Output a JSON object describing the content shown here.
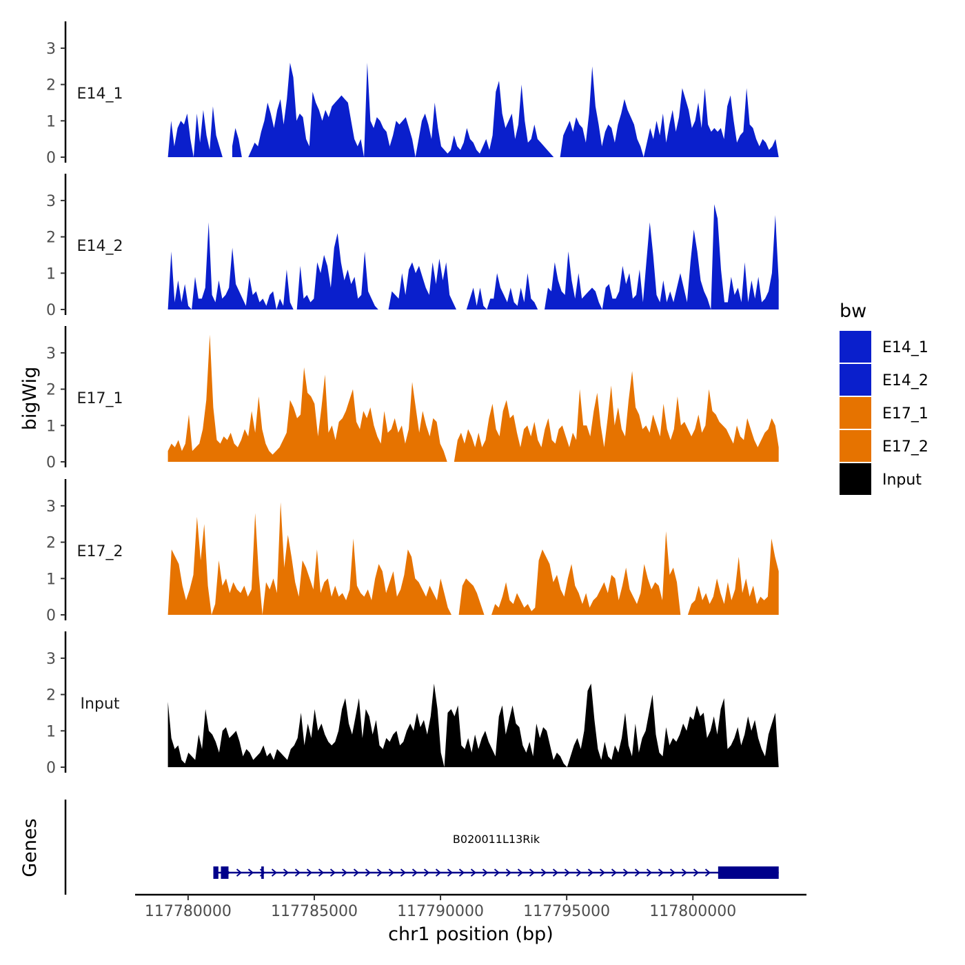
{
  "chart_data": {
    "type": "area",
    "title": "",
    "ylabel": "bigWig",
    "genes_label": "Genes",
    "xlabel": "chr1 position (bp)",
    "x_ticks": [
      117780000,
      117785000,
      117790000,
      117795000,
      117800000
    ],
    "x_tick_labels": [
      "117780000",
      "117785000",
      "117790000",
      "117795000",
      "117800000"
    ],
    "xlim": [
      117777900,
      117804500
    ],
    "data_x_range": [
      117779200,
      117803400
    ],
    "ylim": [
      0,
      3.7
    ],
    "y_ticks": [
      0,
      1,
      2,
      3
    ],
    "y_tick_labels": [
      "0",
      "1",
      "2",
      "3"
    ],
    "legend": {
      "title": "bw",
      "position": "right",
      "entries": [
        {
          "label": "E14_1",
          "color": "#0a1fcc"
        },
        {
          "label": "E14_2",
          "color": "#0a1fcc"
        },
        {
          "label": "E17_1",
          "color": "#e67300"
        },
        {
          "label": "E17_2",
          "color": "#e67300"
        },
        {
          "label": "Input",
          "color": "#000000"
        }
      ]
    },
    "series": [
      {
        "name": "E14_1",
        "color": "#0a1fcc",
        "values": [
          0,
          1.0,
          0.3,
          0.8,
          1.0,
          0.9,
          1.2,
          0.5,
          0,
          1.2,
          0.4,
          1.3,
          0.6,
          0.2,
          1.4,
          0.6,
          0.3,
          0,
          null,
          null,
          0.3,
          0.8,
          0.5,
          0,
          null,
          0,
          0.2,
          0.4,
          0.3,
          0.7,
          1.0,
          1.5,
          1.2,
          0.8,
          1.3,
          1.6,
          0.9,
          1.6,
          2.6,
          2.2,
          1.0,
          1.2,
          1.1,
          0.5,
          0.3,
          1.8,
          1.5,
          1.3,
          1.0,
          1.3,
          1.1,
          1.4,
          1.5,
          1.6,
          1.7,
          1.6,
          1.5,
          1.0,
          0.5,
          0.3,
          0.5,
          0,
          2.6,
          1.0,
          0.8,
          1.1,
          1.0,
          0.8,
          0.7,
          0.3,
          0.6,
          1.0,
          0.9,
          1.0,
          1.1,
          0.8,
          0.5,
          0,
          0.5,
          1.0,
          1.2,
          0.9,
          0.5,
          1.5,
          0.8,
          0.3,
          0.2,
          0.1,
          0.2,
          0.6,
          0.3,
          0.2,
          0.4,
          0.8,
          0.5,
          0.4,
          0.2,
          0.1,
          0.3,
          0.5,
          0.2,
          0.6,
          1.8,
          2.1,
          1.2,
          0.8,
          1.0,
          1.2,
          0.5,
          0.9,
          2.0,
          1.0,
          0.4,
          0.5,
          0.9,
          0.5,
          0.4,
          0.3,
          0.2,
          0.1,
          0,
          null,
          0,
          0.6,
          0.8,
          1.0,
          0.7,
          1.1,
          0.9,
          0.8,
          0.4,
          1.2,
          2.5,
          1.4,
          0.9,
          0.3,
          0.7,
          0.9,
          0.8,
          0.4,
          0.9,
          1.2,
          1.6,
          1.3,
          1.1,
          0.9,
          0.5,
          0.3,
          0,
          0.4,
          0.8,
          0.5,
          1.0,
          0.6,
          1.2,
          0.4,
          0.9,
          1.3,
          0.7,
          1.1,
          1.9,
          1.6,
          1.3,
          0.8,
          1.0,
          1.5,
          0.8,
          1.9,
          0.9,
          0.7,
          0.8,
          0.7,
          0.8,
          0.5,
          1.4,
          1.7,
          1.0,
          0.4,
          0.6,
          0.7,
          1.9,
          0.9,
          0.8,
          0.5,
          0.3,
          0.5,
          0.4,
          0.2,
          0.3,
          0.5,
          0
        ]
      },
      {
        "name": "E14_2",
        "color": "#0a1fcc",
        "values": [
          0,
          1.6,
          0.2,
          0.8,
          0.2,
          0.7,
          0.1,
          0,
          0.9,
          0.3,
          0.3,
          0.6,
          2.4,
          0.4,
          0.2,
          0.8,
          0.3,
          0.4,
          0.6,
          1.7,
          0.7,
          0.5,
          0.3,
          0.1,
          0.9,
          0.4,
          0.5,
          0.2,
          0.3,
          0.1,
          0.4,
          0.5,
          0,
          0.3,
          0.1,
          1.1,
          0.2,
          0,
          0,
          1.2,
          0.3,
          0.4,
          0.2,
          0.3,
          1.3,
          1.0,
          1.5,
          1.2,
          0.6,
          1.7,
          2.1,
          1.3,
          0.8,
          1.1,
          0.7,
          0.9,
          0.3,
          0.4,
          1.6,
          0.5,
          0.3,
          0.1,
          0,
          null,
          null,
          0,
          0.5,
          0.4,
          0.3,
          1.0,
          0.4,
          1.1,
          1.3,
          1.0,
          1.2,
          0.9,
          0.6,
          0.4,
          1.3,
          0.7,
          1.4,
          0.8,
          1.3,
          0.4,
          0.2,
          0,
          null,
          null,
          0,
          0.3,
          0.6,
          0.1,
          0.6,
          0.1,
          0,
          0.3,
          0.3,
          1.0,
          0.6,
          0.4,
          0.2,
          0.6,
          0.2,
          0.1,
          0.6,
          0.2,
          1.0,
          0.3,
          0.2,
          0,
          null,
          0,
          0.6,
          0.5,
          1.3,
          0.8,
          0.5,
          0.4,
          1.6,
          0.8,
          0.3,
          1.0,
          0.3,
          0.4,
          0.5,
          0.6,
          0.5,
          0.2,
          0,
          0.6,
          0.7,
          0.3,
          0.3,
          0.5,
          1.2,
          0.7,
          1.0,
          0.3,
          0.4,
          1.1,
          0.2,
          1.3,
          2.4,
          1.5,
          0.4,
          0.2,
          0.8,
          0.2,
          0.5,
          0.2,
          0.6,
          1.0,
          0.6,
          0.2,
          1.3,
          2.2,
          1.6,
          0.8,
          0.5,
          0.3,
          0,
          2.9,
          2.5,
          1.1,
          0.2,
          0.2,
          0.9,
          0.4,
          0.6,
          0.2,
          1.3,
          0.2,
          0.8,
          0.3,
          0.9,
          0.2,
          0.3,
          0.5,
          1.0,
          2.6,
          0.8
        ]
      },
      {
        "name": "E17_1",
        "color": "#e67300",
        "values": [
          0.3,
          0.5,
          0.4,
          0.6,
          0.3,
          0.5,
          1.3,
          0.3,
          0.4,
          0.5,
          0.9,
          1.7,
          3.5,
          1.5,
          0.6,
          0.5,
          0.7,
          0.6,
          0.8,
          0.5,
          0.4,
          0.6,
          0.9,
          0.7,
          1.4,
          0.8,
          1.8,
          0.9,
          0.5,
          0.3,
          0.2,
          0.3,
          0.4,
          0.6,
          0.8,
          1.7,
          1.5,
          1.2,
          1.3,
          2.6,
          1.9,
          1.8,
          1.6,
          0.7,
          1.5,
          2.4,
          0.8,
          1.0,
          0.6,
          1.1,
          1.2,
          1.4,
          1.7,
          2.0,
          1.1,
          0.9,
          1.4,
          1.2,
          1.5,
          1.0,
          0.7,
          0.5,
          1.4,
          0.8,
          0.9,
          1.2,
          0.8,
          1.0,
          0.5,
          0.9,
          2.2,
          1.5,
          0.8,
          1.4,
          1.0,
          0.7,
          1.2,
          1.1,
          0.5,
          0.3,
          0,
          null,
          0,
          0.6,
          0.8,
          0.5,
          0.9,
          0.7,
          0.4,
          0.8,
          0.4,
          0.6,
          1.2,
          1.6,
          0.9,
          0.7,
          1.4,
          1.7,
          1.2,
          1.3,
          0.8,
          0.4,
          0.9,
          1.0,
          0.7,
          1.1,
          0.6,
          0.4,
          0.9,
          1.2,
          0.6,
          0.5,
          0.9,
          1.0,
          0.7,
          0.4,
          0.8,
          0.6,
          2.0,
          1.0,
          1.0,
          0.7,
          1.4,
          1.9,
          1.0,
          0.4,
          1.2,
          2.1,
          1.0,
          1.5,
          0.9,
          0.7,
          1.7,
          2.5,
          1.5,
          1.3,
          0.9,
          1.0,
          0.8,
          1.3,
          1.0,
          0.7,
          1.6,
          0.9,
          0.6,
          0.9,
          1.8,
          1.0,
          1.1,
          0.9,
          0.7,
          0.9,
          1.3,
          0.8,
          1.0,
          2.0,
          1.4,
          1.3,
          1.1,
          1.0,
          0.9,
          0.7,
          0.5,
          1.0,
          0.7,
          0.6,
          1.2,
          0.9,
          0.6,
          0.4,
          0.6,
          0.8,
          0.9,
          1.2,
          1.0,
          0.4
        ]
      },
      {
        "name": "E17_2",
        "color": "#e67300",
        "values": [
          0,
          1.8,
          1.6,
          1.4,
          0.8,
          0.4,
          0.7,
          1.1,
          2.7,
          1.5,
          2.5,
          0.8,
          0,
          0.3,
          1.5,
          0.8,
          1.0,
          0.6,
          0.9,
          0.7,
          0.6,
          0.8,
          0.5,
          0.7,
          2.8,
          1.1,
          0,
          0.9,
          0.7,
          1.0,
          0.6,
          3.1,
          1.3,
          2.2,
          1.6,
          0.9,
          0.5,
          1.5,
          1.3,
          1.0,
          0.7,
          1.8,
          0.6,
          0.9,
          1.0,
          0.5,
          0.8,
          0.5,
          0.6,
          0.4,
          0.7,
          2.1,
          0.8,
          0.6,
          0.5,
          0.7,
          0.4,
          1.0,
          1.4,
          1.2,
          0.6,
          0.9,
          1.2,
          0.5,
          0.7,
          1.1,
          1.8,
          1.6,
          1.0,
          0.9,
          0.7,
          0.5,
          0.8,
          0.6,
          0.4,
          1.0,
          0.6,
          0.2,
          0,
          null,
          0,
          0.8,
          1.0,
          0.9,
          0.8,
          0.6,
          0.3,
          0,
          null,
          0,
          0.3,
          0.2,
          0.5,
          0.9,
          0.4,
          0.3,
          0.6,
          0.4,
          0.2,
          0.3,
          0.1,
          0.2,
          1.5,
          1.8,
          1.6,
          1.4,
          0.9,
          1.1,
          0.7,
          0.5,
          1.0,
          1.4,
          0.8,
          0.6,
          0.3,
          0.6,
          0.2,
          0.4,
          0.5,
          0.7,
          0.9,
          0.6,
          1.1,
          1.0,
          0.4,
          0.8,
          1.3,
          0.7,
          0.5,
          0.3,
          0.6,
          1.4,
          1.0,
          0.7,
          0.9,
          0.8,
          0.4,
          2.3,
          1.1,
          1.3,
          0.9,
          0,
          null,
          0,
          0.3,
          0.4,
          0.8,
          0.4,
          0.6,
          0.3,
          0.5,
          1.0,
          0.6,
          0.3,
          0.9,
          0.4,
          0.7,
          1.6,
          0.6,
          1.0,
          0.5,
          0.8,
          0.3,
          0.5,
          0.4,
          0.5,
          2.1,
          1.6,
          1.2
        ]
      },
      {
        "name": "Input",
        "color": "#000000",
        "values": [
          1.8,
          0.8,
          0.5,
          0.6,
          0.2,
          0.1,
          0.4,
          0.3,
          0.2,
          0.9,
          0.5,
          1.6,
          1.0,
          0.9,
          0.7,
          0.4,
          1.0,
          1.1,
          0.8,
          0.9,
          1.0,
          0.7,
          0.3,
          0.5,
          0.4,
          0.2,
          0.3,
          0.4,
          0.6,
          0.3,
          0.4,
          0.2,
          0.5,
          0.4,
          0.3,
          0.2,
          0.5,
          0.6,
          0.8,
          1.5,
          0.6,
          1.2,
          0.8,
          1.6,
          1.0,
          1.2,
          0.9,
          0.7,
          0.6,
          0.7,
          1.0,
          1.6,
          1.9,
          1.2,
          0.9,
          1.4,
          1.9,
          0.8,
          1.6,
          1.4,
          0.9,
          1.3,
          0.6,
          0.5,
          0.8,
          0.7,
          0.9,
          1.0,
          0.6,
          0.7,
          1.0,
          1.2,
          1.0,
          1.5,
          1.1,
          1.3,
          0.9,
          1.4,
          2.3,
          1.6,
          0.4,
          0,
          1.5,
          1.6,
          1.4,
          1.7,
          0.6,
          0.5,
          0.8,
          0.4,
          0.9,
          0.5,
          0.8,
          1.0,
          0.7,
          0.5,
          0.3,
          1.4,
          1.7,
          0.9,
          1.3,
          1.7,
          1.2,
          1.1,
          0.6,
          0.4,
          0.7,
          0.3,
          1.2,
          0.8,
          1.1,
          1.0,
          0.6,
          0.2,
          0.4,
          0.3,
          0.1,
          0,
          0.3,
          0.6,
          0.8,
          0.5,
          1.0,
          2.1,
          2.3,
          1.3,
          0.5,
          0.2,
          0.7,
          0.3,
          0.2,
          0.6,
          0.4,
          0.8,
          1.5,
          0.6,
          0.3,
          1.2,
          0.4,
          0.8,
          1.0,
          1.5,
          2.0,
          0.9,
          0.4,
          0.3,
          1.1,
          0.6,
          0.8,
          0.7,
          0.9,
          1.2,
          1.0,
          1.4,
          1.3,
          1.7,
          1.4,
          1.5,
          0.8,
          1.0,
          1.4,
          0.9,
          1.6,
          1.9,
          0.5,
          0.6,
          0.8,
          1.1,
          0.6,
          0.9,
          1.4,
          1.0,
          1.3,
          0.8,
          0.5,
          0.3,
          0.9,
          1.2,
          1.5,
          0
        ]
      }
    ],
    "gene": {
      "name": "B020011L13Rik",
      "color": "#00008b",
      "strand": "+",
      "start": 117781000,
      "end": 117803400,
      "exons": [
        [
          117781000,
          117781200
        ],
        [
          117781300,
          117781600
        ],
        [
          117782900,
          117783000
        ],
        [
          117801000,
          117803400
        ]
      ]
    }
  }
}
